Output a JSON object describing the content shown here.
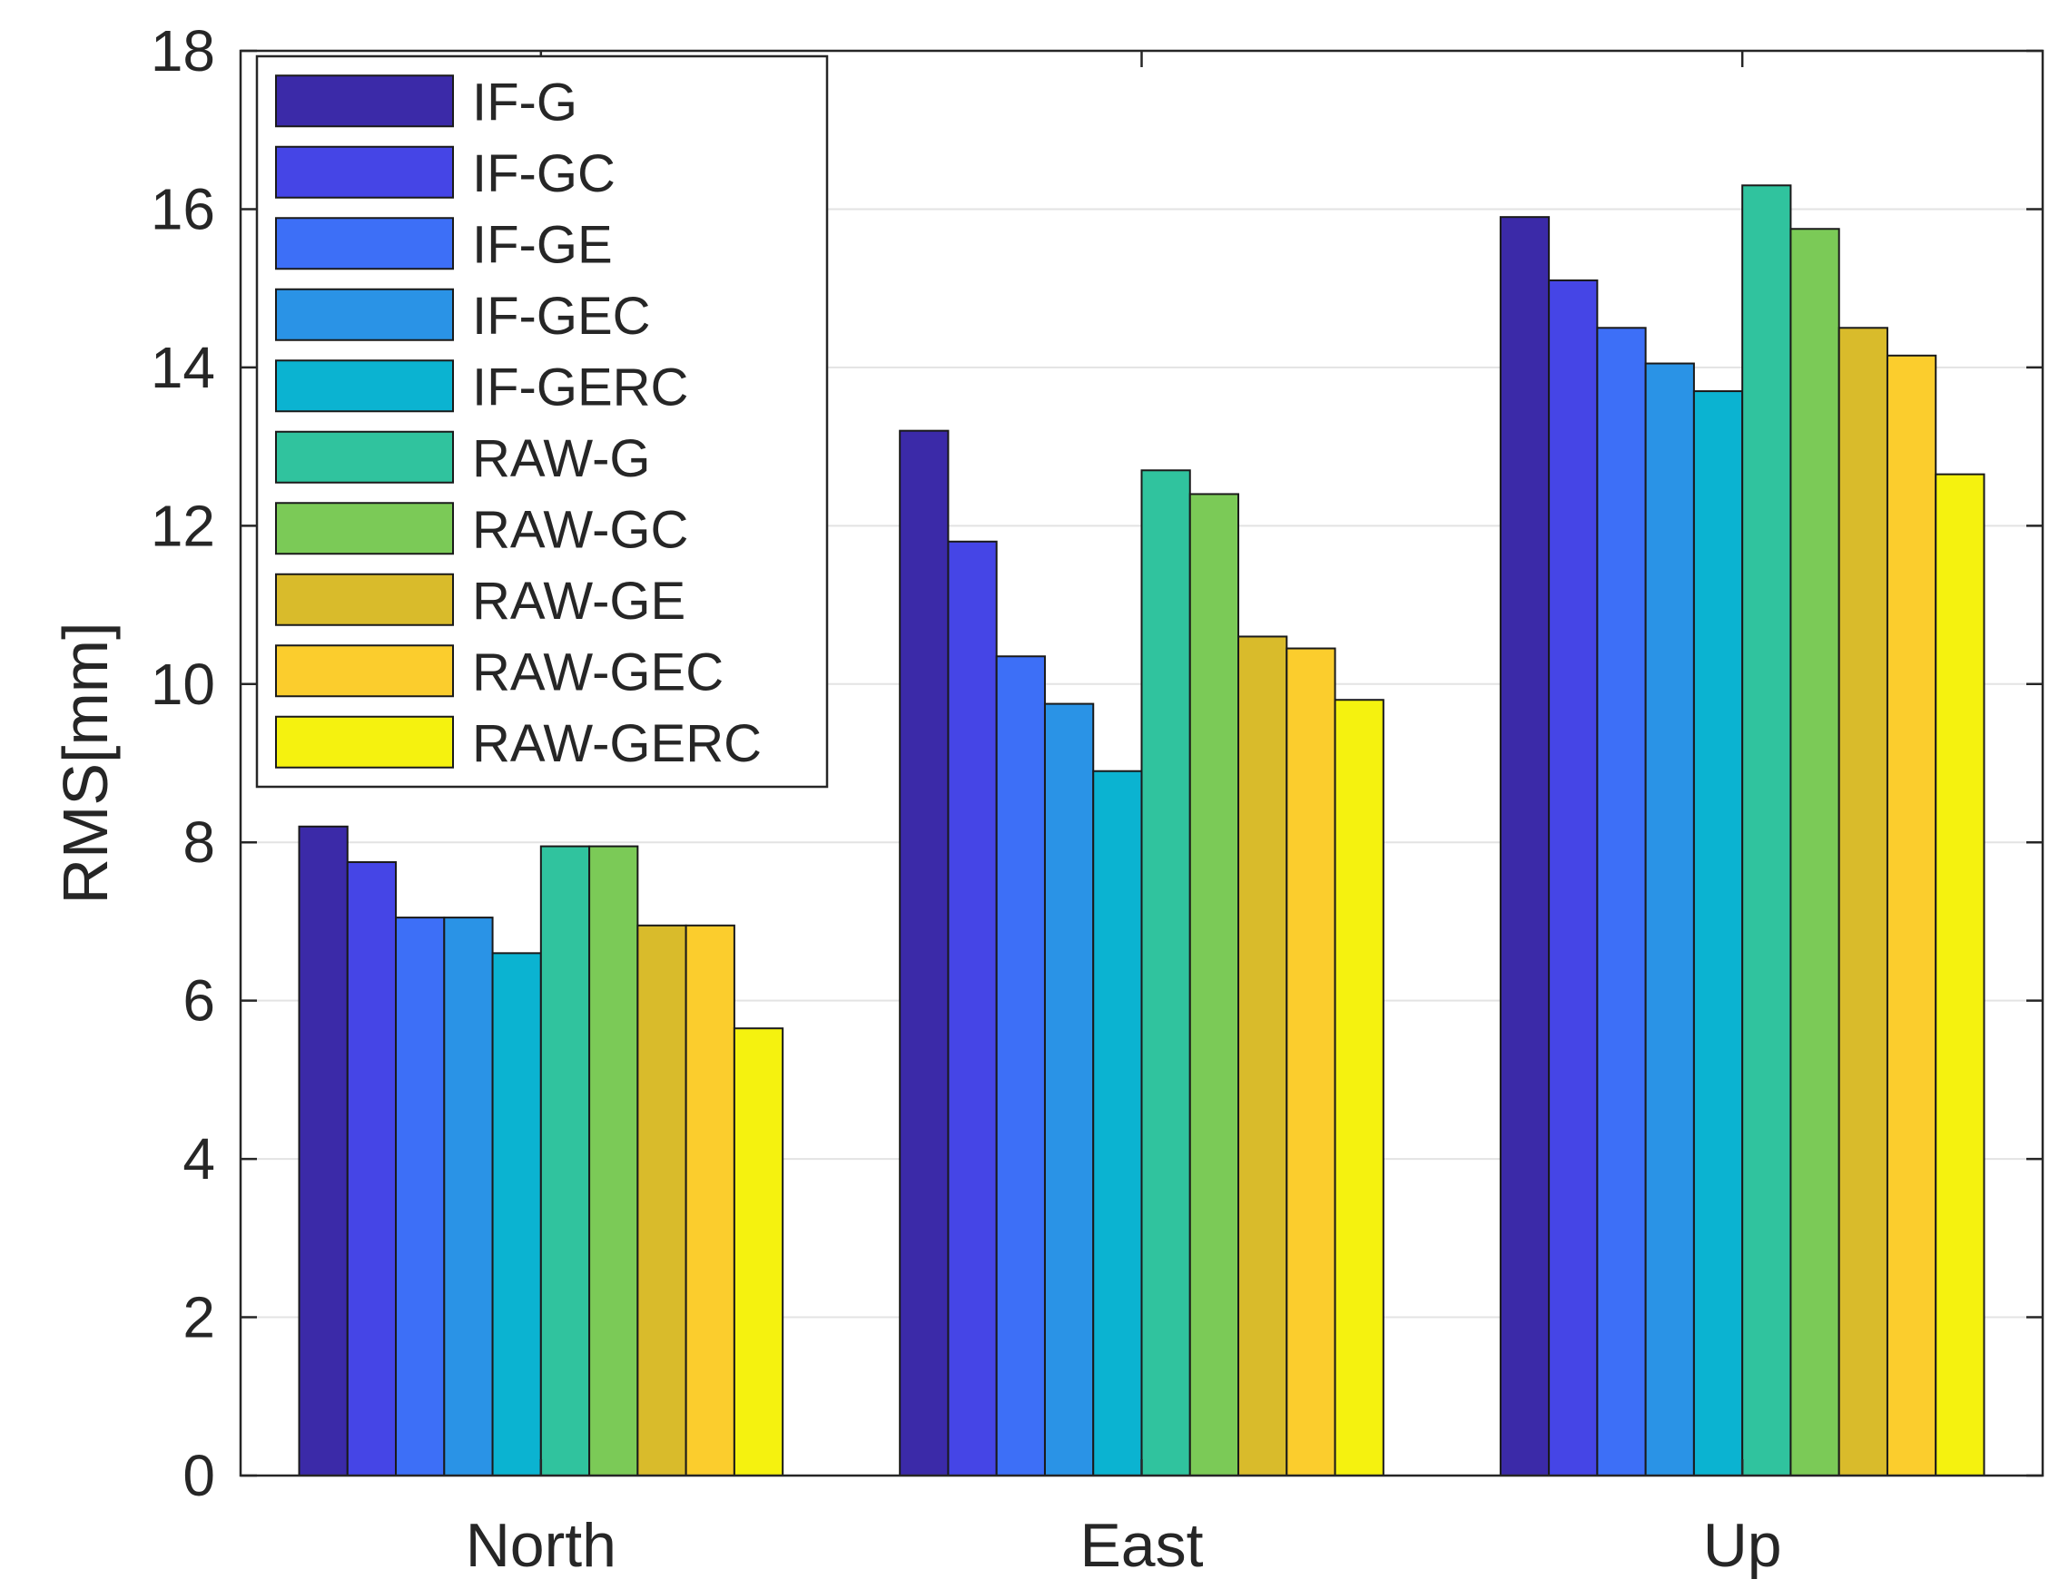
{
  "chart_data": {
    "type": "bar",
    "title": "",
    "xlabel": "",
    "ylabel": "RMS[mm]",
    "ylim": [
      0,
      18
    ],
    "yticks": [
      0,
      2,
      4,
      6,
      8,
      10,
      12,
      14,
      16,
      18
    ],
    "grid": true,
    "legend_position": "top-left",
    "categories": [
      "North",
      "East",
      "Up"
    ],
    "series": [
      {
        "name": "IF-G",
        "color": "#3b2aa8",
        "values": [
          8.2,
          13.2,
          15.9
        ]
      },
      {
        "name": "IF-GC",
        "color": "#4545e6",
        "values": [
          7.75,
          11.8,
          15.1
        ]
      },
      {
        "name": "IF-GE",
        "color": "#3d6ff7",
        "values": [
          7.05,
          10.35,
          14.5
        ]
      },
      {
        "name": "IF-GEC",
        "color": "#2a93e6",
        "values": [
          7.05,
          9.75,
          14.05
        ]
      },
      {
        "name": "IF-GERC",
        "color": "#0bb3d1",
        "values": [
          6.6,
          8.9,
          13.7
        ]
      },
      {
        "name": "RAW-G",
        "color": "#30c39e",
        "values": [
          7.95,
          12.7,
          16.3
        ]
      },
      {
        "name": "RAW-GC",
        "color": "#7bca57",
        "values": [
          7.95,
          12.4,
          15.75
        ]
      },
      {
        "name": "RAW-GE",
        "color": "#d9bb2b",
        "values": [
          6.95,
          10.6,
          14.5
        ]
      },
      {
        "name": "RAW-GEC",
        "color": "#fbcd2d",
        "values": [
          6.95,
          10.45,
          14.15
        ]
      },
      {
        "name": "RAW-GERC",
        "color": "#f5f20f",
        "values": [
          5.65,
          9.8,
          12.65
        ]
      }
    ]
  }
}
